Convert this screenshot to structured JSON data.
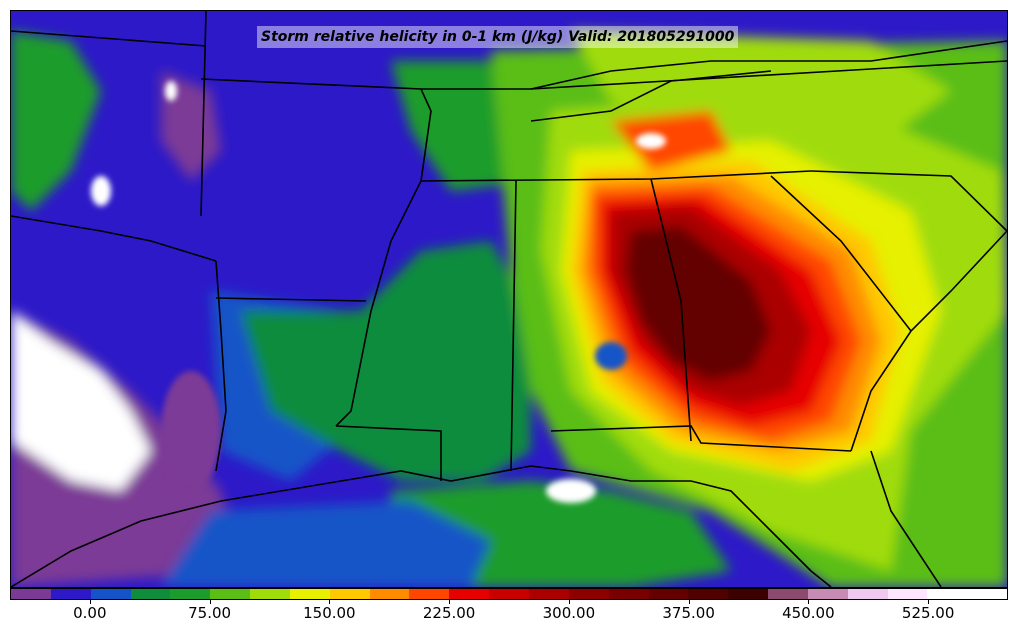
{
  "map": {
    "title": "Storm relative helicity in 0-1 km (J/kg) Valid: 201805291000",
    "variable": "Storm relative helicity in 0-1 km",
    "units": "J/kg",
    "valid_time": "201805291000"
  },
  "colorbar": {
    "colors": [
      "#7b3a96",
      "#2d19c8",
      "#1454c8",
      "#0f8c3c",
      "#1c9c2c",
      "#5abe14",
      "#a0dc0a",
      "#e6f000",
      "#ffc800",
      "#ff8c00",
      "#ff4600",
      "#e60000",
      "#c80000",
      "#aa0000",
      "#8c0000",
      "#780000",
      "#640000",
      "#500000",
      "#3c0000",
      "#8c4a6e",
      "#c88cb4",
      "#f0c8f0",
      "#ffe6ff",
      "#ffffff",
      "#ffffff"
    ],
    "tick_labels": [
      "0.00",
      "75.00",
      "150.00",
      "225.00",
      "300.00",
      "375.00",
      "450.00",
      "525.00"
    ],
    "tick_values": [
      0,
      75,
      150,
      225,
      300,
      375,
      450,
      525
    ],
    "min": -50,
    "max": 575
  }
}
